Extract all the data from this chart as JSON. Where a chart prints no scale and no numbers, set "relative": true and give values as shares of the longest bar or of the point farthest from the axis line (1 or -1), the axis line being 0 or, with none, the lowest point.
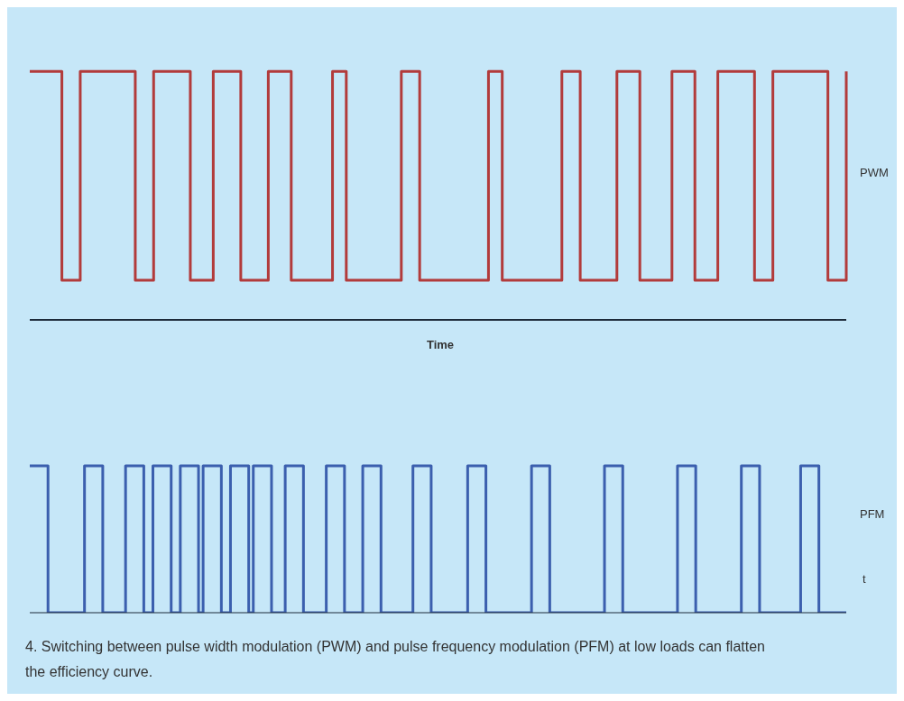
{
  "chart_data": [
    {
      "type": "step",
      "relative": true,
      "xlabel": "Time",
      "categories": [
        null,
        null,
        null,
        null,
        null,
        null,
        null,
        null,
        null,
        null,
        null,
        null,
        null,
        null,
        null,
        null,
        null,
        null,
        null,
        null,
        null,
        null,
        null,
        null,
        null,
        null,
        null,
        null,
        null,
        null,
        null,
        null,
        null,
        null,
        null,
        null,
        null,
        null,
        null,
        null,
        null,
        null,
        null,
        null,
        null,
        null,
        null,
        null,
        null,
        null,
        null,
        null,
        null,
        null,
        null,
        null,
        null,
        null,
        null,
        null,
        null,
        null,
        null,
        null,
        null,
        null,
        null,
        null,
        null,
        null,
        null,
        null,
        null,
        null,
        null,
        null,
        null,
        null,
        null,
        null,
        null,
        null,
        null,
        null,
        null,
        null,
        null,
        null,
        null,
        null,
        null,
        null,
        null,
        null,
        null,
        null,
        null,
        null,
        null,
        null,
        null,
        null,
        null,
        null,
        null,
        null,
        null,
        null,
        null,
        null,
        null,
        null,
        null,
        null,
        null,
        null,
        null,
        null,
        null,
        null,
        null,
        null,
        null,
        null,
        null,
        null,
        null,
        null,
        null,
        null,
        null,
        null,
        null,
        null,
        null,
        null,
        null,
        null,
        null,
        null,
        null,
        null,
        null,
        null,
        null,
        null,
        null,
        null,
        null,
        null,
        null,
        null,
        null,
        null,
        null,
        null,
        null,
        null,
        null,
        null,
        null,
        null,
        null,
        null,
        null,
        null,
        null,
        null,
        null,
        null,
        null,
        null,
        null,
        null,
        null,
        null,
        null,
        null,
        null
      ],
      "series": [
        {
          "name": "PWM",
          "color": "#b23b3b",
          "values": [
            1,
            1,
            1,
            1,
            1,
            1,
            1,
            0.16,
            0.16,
            0.16,
            0.16,
            1,
            1,
            1,
            1,
            1,
            1,
            1,
            1,
            1,
            1,
            1,
            1,
            0.16,
            0.16,
            0.16,
            0.16,
            1,
            1,
            1,
            1,
            1,
            1,
            1,
            1,
            0.16,
            0.16,
            0.16,
            0.16,
            0.16,
            1,
            1,
            1,
            1,
            1,
            1,
            0.16,
            0.16,
            0.16,
            0.16,
            0.16,
            0.16,
            1,
            1,
            1,
            1,
            1,
            0.16,
            0.16,
            0.16,
            0.16,
            0.16,
            0.16,
            0.16,
            0.16,
            0.16,
            1,
            1,
            1,
            0.16,
            0.16,
            0.16,
            0.16,
            0.16,
            0.16,
            0.16,
            0.16,
            0.16,
            0.16,
            0.16,
            0.16,
            1,
            1,
            1,
            1,
            0.16,
            0.16,
            0.16,
            0.16,
            0.16,
            0.16,
            0.16,
            0.16,
            0.16,
            0.16,
            0.16,
            0.16,
            0.16,
            0.16,
            0.16,
            1,
            1,
            1,
            0.16,
            0.16,
            0.16,
            0.16,
            0.16,
            0.16,
            0.16,
            0.16,
            0.16,
            0.16,
            0.16,
            0.16,
            0.16,
            1,
            1,
            1,
            1,
            0.16,
            0.16,
            0.16,
            0.16,
            0.16,
            0.16,
            0.16,
            0.16,
            1,
            1,
            1,
            1,
            1,
            0.16,
            0.16,
            0.16,
            0.16,
            0.16,
            0.16,
            0.16,
            1,
            1,
            1,
            1,
            1,
            0.16,
            0.16,
            0.16,
            0.16,
            0.16,
            1,
            1,
            1,
            1,
            1,
            1,
            1,
            1,
            0.16,
            0.16,
            0.16,
            0.16,
            1,
            1,
            1,
            1,
            1,
            1,
            1,
            1,
            1,
            1,
            1,
            1,
            0.16,
            0.16,
            0.16,
            0.16,
            1
          ]
        }
      ]
    },
    {
      "type": "step",
      "relative": true,
      "annotations": [
        "t",
        "4. Switching between pulse width modulation (PWM) and pulse frequency modulation (PFM) at low loads can flatten the efficiency curve."
      ],
      "categories": [
        null,
        null,
        null,
        null,
        null,
        null,
        null,
        null,
        null,
        null,
        null,
        null,
        null,
        null,
        null,
        null,
        null,
        null,
        null,
        null,
        null,
        null,
        null,
        null,
        null,
        null,
        null,
        null,
        null,
        null,
        null,
        null,
        null,
        null,
        null,
        null,
        null,
        null,
        null,
        null,
        null,
        null,
        null,
        null,
        null,
        null,
        null,
        null,
        null,
        null,
        null,
        null,
        null,
        null,
        null,
        null,
        null,
        null,
        null,
        null,
        null,
        null,
        null,
        null,
        null,
        null,
        null,
        null,
        null,
        null,
        null,
        null,
        null,
        null,
        null,
        null,
        null,
        null,
        null,
        null,
        null,
        null,
        null,
        null,
        null,
        null,
        null,
        null,
        null,
        null,
        null,
        null,
        null,
        null,
        null,
        null,
        null,
        null,
        null,
        null,
        null,
        null,
        null,
        null,
        null,
        null,
        null,
        null,
        null,
        null,
        null,
        null,
        null,
        null,
        null,
        null,
        null,
        null,
        null,
        null,
        null,
        null,
        null,
        null,
        null,
        null,
        null,
        null,
        null,
        null,
        null,
        null,
        null,
        null,
        null,
        null,
        null,
        null,
        null,
        null,
        null,
        null,
        null,
        null,
        null,
        null,
        null,
        null,
        null,
        null,
        null,
        null,
        null,
        null,
        null,
        null,
        null,
        null,
        null,
        null,
        null,
        null,
        null,
        null,
        null,
        null,
        null,
        null,
        null,
        null,
        null,
        null,
        null,
        null,
        null,
        null,
        null,
        null,
        null,
        null
      ],
      "series": [
        {
          "name": "PFM",
          "color": "#3b5fae",
          "values": [
            1,
            1,
            1,
            1,
            0,
            0,
            0,
            0,
            0,
            0,
            0,
            0,
            1,
            1,
            1,
            1,
            0,
            0,
            0,
            0,
            0,
            1,
            1,
            1,
            1,
            0,
            0,
            1,
            1,
            1,
            1,
            0,
            0,
            1,
            1,
            1,
            1,
            0,
            1,
            1,
            1,
            1,
            0,
            0,
            1,
            1,
            1,
            1,
            0,
            1,
            1,
            1,
            1,
            0,
            0,
            0,
            1,
            1,
            1,
            1,
            0,
            0,
            0,
            0,
            0,
            1,
            1,
            1,
            1,
            0,
            0,
            0,
            0,
            1,
            1,
            1,
            1,
            0,
            0,
            0,
            0,
            0,
            0,
            0,
            1,
            1,
            1,
            1,
            0,
            0,
            0,
            0,
            0,
            0,
            0,
            0,
            1,
            1,
            1,
            1,
            0,
            0,
            0,
            0,
            0,
            0,
            0,
            0,
            0,
            0,
            1,
            1,
            1,
            1,
            0,
            0,
            0,
            0,
            0,
            0,
            0,
            0,
            0,
            0,
            0,
            0,
            1,
            1,
            1,
            1,
            0,
            0,
            0,
            0,
            0,
            0,
            0,
            0,
            0,
            0,
            0,
            0,
            1,
            1,
            1,
            1,
            0,
            0,
            0,
            0,
            0,
            0,
            0,
            0,
            0,
            0,
            1,
            1,
            1,
            1,
            0,
            0,
            0,
            0,
            0,
            0,
            0,
            0,
            0,
            1,
            1,
            1,
            1,
            0,
            0,
            0,
            0,
            0,
            0,
            0
          ]
        }
      ]
    }
  ]
}
